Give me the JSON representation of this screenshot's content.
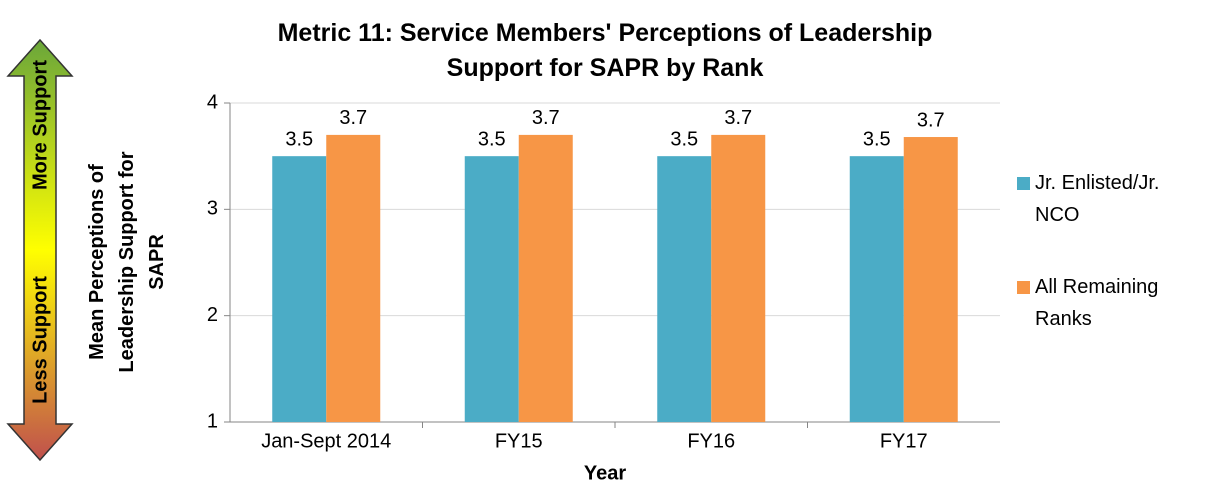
{
  "chart_data": {
    "type": "bar",
    "title": "Metric 11: Service Members' Perceptions of Leadership Support for SAPR by Rank",
    "x_label": "Year",
    "y_label": "Mean Perceptions of Leadership Support for SAPR",
    "annotations": [
      "Less Support",
      "More Support"
    ],
    "categories": [
      "Jan-Sept 2014",
      "FY15",
      "FY16",
      "FY17"
    ],
    "series": [
      {
        "name": "Jr. Enlisted/Jr. NCO",
        "color": "#4bacc6",
        "values": [
          3.5,
          3.5,
          3.5,
          3.5
        ]
      },
      {
        "name": "All Remaining Ranks",
        "color": "#f79646",
        "values": [
          3.7,
          3.7,
          3.7,
          3.68
        ],
        "value_labels": [
          "3.7",
          "3.7",
          "3.7",
          "3.7"
        ]
      }
    ],
    "ylim": [
      1,
      4
    ],
    "yticks": [
      1,
      2,
      3,
      4
    ],
    "grid": true,
    "legend": "right"
  }
}
